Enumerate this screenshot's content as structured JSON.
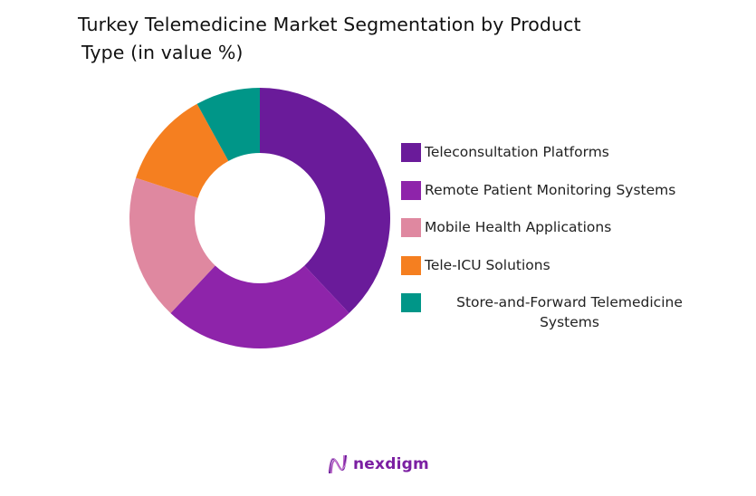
{
  "chart_data": {
    "type": "pie",
    "subtype": "donut",
    "title": "Turkey Telemedicine Market Segmentation by Product Type (in value %)",
    "title_lines": [
      "Turkey Telemedicine Market Segmentation by Product",
      "Type (in value %)"
    ],
    "categories": [
      "Teleconsultation Platforms",
      "Remote Patient Monitoring Systems",
      "Mobile Health Applications",
      "Tele-ICU Solutions",
      "Store-and-Forward Telemedicine Systems"
    ],
    "values": [
      38,
      24,
      18,
      12,
      8
    ],
    "colors": [
      "#6A1B9A",
      "#8E24AA",
      "#DF88A0",
      "#F57F20",
      "#009688"
    ],
    "start_angle_deg": 0,
    "direction": "clockwise",
    "data_labels": false,
    "legend_position": "right"
  },
  "legend": {
    "items": [
      {
        "label": "Teleconsultation Platforms",
        "color": "#6A1B9A"
      },
      {
        "label": "Remote Patient Monitoring Systems",
        "color": "#8E24AA"
      },
      {
        "label": "Mobile Health Applications",
        "color": "#DF88A0"
      },
      {
        "label": "Tele-ICU Solutions",
        "color": "#F57F20"
      },
      {
        "label": "Store-and-Forward Telemedicine Systems",
        "color": "#009688"
      }
    ]
  },
  "branding": {
    "logo_text": "nexdigm",
    "logo_color": "#7B1FA2"
  }
}
